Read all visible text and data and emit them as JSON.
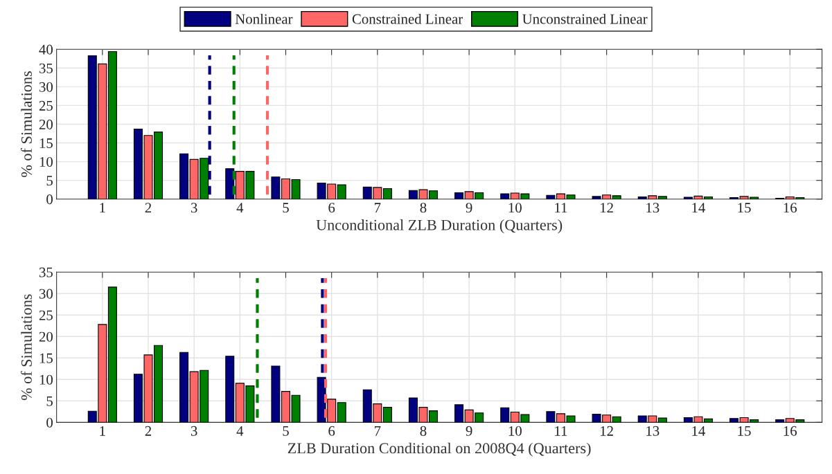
{
  "chart_data": [
    {
      "type": "bar",
      "xlabel": "Unconditional ZLB Duration (Quarters)",
      "ylabel": "% of Simulations",
      "x": [
        1,
        2,
        3,
        4,
        5,
        6,
        7,
        8,
        9,
        10,
        11,
        12,
        13,
        14,
        15,
        16
      ],
      "series": [
        {
          "name": "Nonlinear",
          "color": "#000080",
          "values": [
            38.3,
            18.7,
            12.1,
            8.1,
            5.9,
            4.3,
            3.2,
            2.3,
            1.7,
            1.4,
            1.0,
            0.7,
            0.6,
            0.5,
            0.4,
            0.2
          ]
        },
        {
          "name": "Constrained Linear",
          "color": "#ff6666",
          "values": [
            36.1,
            17.0,
            10.6,
            7.4,
            5.4,
            4.0,
            3.1,
            2.5,
            2.0,
            1.6,
            1.4,
            1.1,
            0.9,
            0.8,
            0.7,
            0.6
          ]
        },
        {
          "name": "Unconstrained Linear",
          "color": "#008000",
          "values": [
            39.4,
            17.9,
            10.9,
            7.4,
            5.2,
            3.8,
            2.8,
            2.2,
            1.7,
            1.4,
            1.1,
            0.9,
            0.7,
            0.6,
            0.5,
            0.4
          ]
        }
      ],
      "ref_lines": [
        {
          "axis": "x",
          "value": 3.34,
          "color": "#000080",
          "line_style": "dashed"
        },
        {
          "axis": "x",
          "value": 3.87,
          "color": "#008000",
          "line_style": "dashed"
        },
        {
          "axis": "x",
          "value": 4.6,
          "color": "#ff6666",
          "line_style": "dashed"
        }
      ],
      "xlim": [
        0,
        16.7
      ],
      "xticks": [
        1,
        2,
        3,
        4,
        5,
        6,
        7,
        8,
        9,
        10,
        11,
        12,
        13,
        14,
        15,
        16
      ],
      "ylim": [
        0,
        40
      ],
      "yticks": [
        0,
        5,
        10,
        15,
        20,
        25,
        30,
        35,
        40
      ],
      "grid": true,
      "legend": "top"
    },
    {
      "type": "bar",
      "xlabel": "ZLB Duration Conditional on 2008Q4 (Quarters)",
      "ylabel": "% of Simulations",
      "x": [
        1,
        2,
        3,
        4,
        5,
        6,
        7,
        8,
        9,
        10,
        11,
        12,
        13,
        14,
        15,
        16
      ],
      "series": [
        {
          "color": "#000080",
          "values": [
            2.6,
            11.2,
            16.3,
            15.4,
            13.1,
            10.5,
            7.6,
            5.7,
            4.1,
            3.4,
            2.5,
            1.9,
            1.5,
            1.1,
            0.9,
            0.6
          ]
        },
        {
          "color": "#ff6666",
          "values": [
            22.8,
            15.7,
            11.8,
            9.1,
            7.2,
            5.4,
            4.3,
            3.5,
            2.9,
            2.4,
            2.0,
            1.7,
            1.5,
            1.3,
            1.1,
            0.9
          ]
        },
        {
          "color": "#008000",
          "values": [
            31.5,
            17.9,
            12.1,
            8.5,
            6.3,
            4.6,
            3.5,
            2.7,
            2.2,
            1.8,
            1.5,
            1.3,
            1.0,
            0.8,
            0.6,
            0.6
          ]
        }
      ],
      "ref_lines": [
        {
          "axis": "x",
          "value": 4.38,
          "color": "#008000",
          "line_style": "dashed"
        },
        {
          "axis": "x",
          "value": 5.8,
          "color": "#000080",
          "line_style": "dashed"
        },
        {
          "axis": "x",
          "value": 5.87,
          "color": "#ff6666",
          "line_style": "dashed"
        }
      ],
      "xlim": [
        0,
        16.7
      ],
      "xticks": [
        1,
        2,
        3,
        4,
        5,
        6,
        7,
        8,
        9,
        10,
        11,
        12,
        13,
        14,
        15,
        16
      ],
      "ylim": [
        0,
        35
      ],
      "yticks": [
        0,
        5,
        10,
        15,
        20,
        25,
        30,
        35
      ],
      "grid": true
    }
  ]
}
